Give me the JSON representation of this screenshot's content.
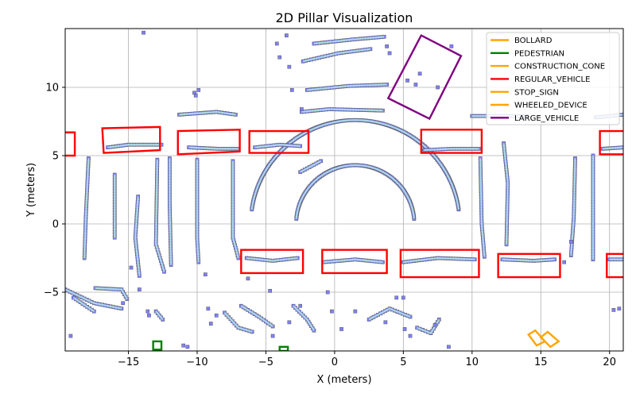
{
  "chart_data": {
    "type": "scatter",
    "title": "2D Pillar Visualization",
    "xlabel": "X (meters)",
    "ylabel": "Y (meters)",
    "xlim": [
      -19.6,
      21.0
    ],
    "ylim": [
      -9.3,
      14.3
    ],
    "x_ticks": [
      -15,
      -10,
      -5,
      0,
      5,
      10,
      15,
      20
    ],
    "x_tick_labels": [
      "−15",
      "−10",
      "−5",
      "0",
      "5",
      "10",
      "15",
      "20"
    ],
    "y_ticks": [
      -5,
      0,
      5,
      10
    ],
    "y_tick_labels": [
      "−5",
      "0",
      "5",
      "10"
    ],
    "grid": true,
    "legend_position": "top-right",
    "colors": {
      "pillar_fill": "#8080ff",
      "pillar_edge": "#555555",
      "point_line": "#add8e6",
      "bollard": "#ffa500",
      "pedestrian": "#008000",
      "construction_cone": "#ffa500",
      "regular_vehicle": "#ff0000",
      "stop_sign": "#ffa500",
      "wheeled_device": "#ffa500",
      "large_vehicle": "#800080"
    },
    "legend": [
      {
        "label": "BOLLARD",
        "color": "#ffa500"
      },
      {
        "label": "PEDESTRIAN",
        "color": "#008000"
      },
      {
        "label": "CONSTRUCTION_CONE",
        "color": "#ffa500"
      },
      {
        "label": "REGULAR_VEHICLE",
        "color": "#ff0000"
      },
      {
        "label": "STOP_SIGN",
        "color": "#ffa500"
      },
      {
        "label": "WHEELED_DEVICE",
        "color": "#ffa500"
      },
      {
        "label": "LARGE_VEHICLE",
        "color": "#800080"
      }
    ],
    "boxes": [
      {
        "category": "REGULAR_VEHICLE",
        "corners": [
          [
            -20.0,
            5.0
          ],
          [
            -18.9,
            5.0
          ],
          [
            -18.9,
            6.7
          ],
          [
            -20.0,
            6.7
          ]
        ]
      },
      {
        "category": "REGULAR_VEHICLE",
        "corners": [
          [
            -16.8,
            5.2
          ],
          [
            -12.7,
            5.4
          ],
          [
            -12.7,
            7.1
          ],
          [
            -16.9,
            7.0
          ]
        ]
      },
      {
        "category": "REGULAR_VEHICLE",
        "corners": [
          [
            -11.4,
            5.1
          ],
          [
            -6.9,
            5.3
          ],
          [
            -6.9,
            6.9
          ],
          [
            -11.4,
            6.8
          ]
        ]
      },
      {
        "category": "REGULAR_VEHICLE",
        "corners": [
          [
            -6.2,
            5.2
          ],
          [
            -1.9,
            5.2
          ],
          [
            -1.9,
            6.8
          ],
          [
            -6.2,
            6.8
          ]
        ]
      },
      {
        "category": "REGULAR_VEHICLE",
        "corners": [
          [
            6.3,
            5.2
          ],
          [
            10.7,
            5.2
          ],
          [
            10.7,
            6.9
          ],
          [
            6.3,
            6.9
          ]
        ]
      },
      {
        "category": "REGULAR_VEHICLE",
        "corners": [
          [
            19.3,
            5.1
          ],
          [
            21.2,
            5.1
          ],
          [
            21.2,
            6.8
          ],
          [
            19.3,
            6.8
          ]
        ]
      },
      {
        "category": "REGULAR_VEHICLE",
        "corners": [
          [
            -6.8,
            -3.6
          ],
          [
            -2.3,
            -3.6
          ],
          [
            -2.3,
            -1.9
          ],
          [
            -6.8,
            -1.9
          ]
        ]
      },
      {
        "category": "REGULAR_VEHICLE",
        "corners": [
          [
            -0.9,
            -3.6
          ],
          [
            3.8,
            -3.6
          ],
          [
            3.8,
            -1.9
          ],
          [
            -0.9,
            -1.9
          ]
        ]
      },
      {
        "category": "REGULAR_VEHICLE",
        "corners": [
          [
            4.8,
            -3.9
          ],
          [
            10.5,
            -3.9
          ],
          [
            10.5,
            -1.9
          ],
          [
            4.8,
            -1.9
          ]
        ]
      },
      {
        "category": "REGULAR_VEHICLE",
        "corners": [
          [
            11.9,
            -3.9
          ],
          [
            16.4,
            -3.9
          ],
          [
            16.4,
            -2.2
          ],
          [
            11.9,
            -2.2
          ]
        ]
      },
      {
        "category": "REGULAR_VEHICLE",
        "corners": [
          [
            19.8,
            -3.9
          ],
          [
            21.2,
            -3.9
          ],
          [
            21.2,
            -2.2
          ],
          [
            19.8,
            -2.2
          ]
        ]
      },
      {
        "category": "LARGE_VEHICLE",
        "corners": [
          [
            3.9,
            9.2
          ],
          [
            6.3,
            13.8
          ],
          [
            9.2,
            12.3
          ],
          [
            6.9,
            7.7
          ]
        ]
      },
      {
        "category": "PEDESTRIAN",
        "corners": [
          [
            -13.2,
            -9.2
          ],
          [
            -12.6,
            -9.2
          ],
          [
            -12.6,
            -8.6
          ],
          [
            -13.2,
            -8.6
          ]
        ]
      },
      {
        "category": "PEDESTRIAN",
        "corners": [
          [
            -4.0,
            -9.3
          ],
          [
            -3.4,
            -9.3
          ],
          [
            -3.4,
            -9.0
          ],
          [
            -4.0,
            -9.0
          ]
        ]
      },
      {
        "category": "WHEELED_DEVICE",
        "corners": [
          [
            14.1,
            -8.1
          ],
          [
            14.6,
            -7.8
          ],
          [
            15.3,
            -8.6
          ],
          [
            14.7,
            -8.9
          ]
        ]
      },
      {
        "category": "WHEELED_DEVICE",
        "corners": [
          [
            15.0,
            -8.3
          ],
          [
            15.5,
            -7.9
          ],
          [
            16.3,
            -8.6
          ],
          [
            15.7,
            -9.0
          ]
        ]
      }
    ],
    "arcs": [
      {
        "cx": 1.5,
        "cy": 0.0,
        "r": 7.6,
        "start_deg": 8,
        "end_deg": 172
      },
      {
        "cx": 1.5,
        "cy": 0.0,
        "r": 4.3,
        "start_deg": 5,
        "end_deg": 175
      }
    ],
    "pillar_lines": [
      [
        [
          -14.3,
          2.0
        ],
        [
          -14.5,
          -1.0
        ],
        [
          -14.2,
          -3.8
        ]
      ],
      [
        [
          -12.0,
          4.8
        ],
        [
          -12.0,
          1.5
        ],
        [
          -11.9,
          -3.0
        ]
      ],
      [
        [
          -10.0,
          4.7
        ],
        [
          -10.0,
          -1.0
        ],
        [
          -9.9,
          -2.8
        ]
      ],
      [
        [
          -7.4,
          4.6
        ],
        [
          -7.4,
          -1.0
        ],
        [
          -7.0,
          -2.5
        ]
      ],
      [
        [
          -17.9,
          4.8
        ],
        [
          -18.1,
          0.5
        ],
        [
          -18.2,
          -2.5
        ]
      ],
      [
        [
          -16.0,
          3.6
        ],
        [
          -16.0,
          -1.0
        ]
      ],
      [
        [
          -12.9,
          4.7
        ],
        [
          -13.0,
          -1.5
        ],
        [
          -12.4,
          -3.5
        ]
      ],
      [
        [
          18.8,
          5.0
        ],
        [
          18.8,
          0.0
        ],
        [
          18.8,
          -2.6
        ]
      ],
      [
        [
          17.5,
          4.8
        ],
        [
          17.4,
          0.5
        ],
        [
          17.2,
          -2.3
        ]
      ],
      [
        [
          12.3,
          5.9
        ],
        [
          12.6,
          3.0
        ],
        [
          12.5,
          -1.5
        ]
      ],
      [
        [
          10.6,
          4.8
        ],
        [
          10.7,
          0.0
        ],
        [
          10.9,
          -2.4
        ]
      ],
      [
        [
          -11.3,
          8.0
        ],
        [
          -8.6,
          8.2
        ],
        [
          -7.2,
          8.0
        ]
      ],
      [
        [
          -2.4,
          8.2
        ],
        [
          -0.4,
          8.4
        ],
        [
          3.5,
          8.3
        ]
      ],
      [
        [
          -2.0,
          9.8
        ],
        [
          1.0,
          10.1
        ],
        [
          3.8,
          10.2
        ]
      ],
      [
        [
          -2.3,
          11.9
        ],
        [
          0.3,
          12.5
        ],
        [
          2.6,
          12.8
        ]
      ],
      [
        [
          -1.5,
          13.2
        ],
        [
          1.3,
          13.5
        ],
        [
          3.6,
          13.7
        ]
      ],
      [
        [
          -19.6,
          -4.8
        ],
        [
          -17.5,
          -5.8
        ],
        [
          -15.5,
          -6.2
        ]
      ],
      [
        [
          -19.0,
          -5.4
        ],
        [
          -17.5,
          -6.4
        ]
      ],
      [
        [
          -17.4,
          -4.7
        ],
        [
          -15.5,
          -4.8
        ],
        [
          -15.1,
          -5.5
        ]
      ],
      [
        [
          -12.6,
          5.8
        ],
        [
          -15.0,
          5.8
        ],
        [
          -16.5,
          5.6
        ]
      ],
      [
        [
          -10.6,
          5.6
        ],
        [
          -8.5,
          5.5
        ],
        [
          -7.0,
          5.5
        ]
      ],
      [
        [
          -5.8,
          5.6
        ],
        [
          -4.0,
          5.8
        ],
        [
          -2.5,
          5.7
        ]
      ],
      [
        [
          6.5,
          5.4
        ],
        [
          8.5,
          5.5
        ],
        [
          10.5,
          5.5
        ]
      ],
      [
        [
          19.5,
          5.5
        ],
        [
          21.0,
          5.6
        ]
      ],
      [
        [
          -6.4,
          -2.5
        ],
        [
          -4.5,
          -2.7
        ],
        [
          -2.7,
          -2.5
        ]
      ],
      [
        [
          -0.8,
          -2.8
        ],
        [
          1.5,
          -2.6
        ],
        [
          3.5,
          -2.8
        ]
      ],
      [
        [
          5.0,
          -2.8
        ],
        [
          7.5,
          -2.5
        ],
        [
          10.2,
          -2.6
        ]
      ],
      [
        [
          12.2,
          -2.6
        ],
        [
          14.5,
          -2.7
        ],
        [
          16.0,
          -2.6
        ]
      ],
      [
        [
          20.0,
          -2.6
        ],
        [
          21.0,
          -2.6
        ]
      ],
      [
        [
          10.0,
          7.9
        ],
        [
          14.0,
          7.9
        ]
      ],
      [
        [
          19.0,
          7.8
        ],
        [
          21.0,
          8.0
        ]
      ],
      [
        [
          -6.8,
          -6.0
        ],
        [
          -5.5,
          -6.8
        ],
        [
          -4.5,
          -7.5
        ]
      ],
      [
        [
          -8.0,
          -6.5
        ],
        [
          -7.0,
          -7.6
        ],
        [
          -6.0,
          -7.9
        ]
      ],
      [
        [
          -3.0,
          -6.0
        ],
        [
          -2.0,
          -7.0
        ],
        [
          -1.5,
          -7.8
        ]
      ],
      [
        [
          2.5,
          -7.0
        ],
        [
          4.0,
          -6.2
        ],
        [
          5.5,
          -6.8
        ]
      ],
      [
        [
          6.0,
          -7.6
        ],
        [
          7.0,
          -8.0
        ],
        [
          7.6,
          -7.0
        ]
      ],
      [
        [
          -13.0,
          -6.4
        ],
        [
          -12.5,
          -7.0
        ]
      ],
      [
        [
          -1.0,
          4.6
        ],
        [
          -2.5,
          3.8
        ]
      ]
    ],
    "scatter_pillars": [
      [
        -13.9,
        14.0
      ],
      [
        -4.2,
        13.2
      ],
      [
        -3.5,
        13.8
      ],
      [
        -3.3,
        11.5
      ],
      [
        -4.0,
        12.2
      ],
      [
        -10.2,
        9.6
      ],
      [
        -9.9,
        9.8
      ],
      [
        -10.1,
        9.4
      ],
      [
        -3.1,
        9.8
      ],
      [
        -2.4,
        8.4
      ],
      [
        3.8,
        13.0
      ],
      [
        4.0,
        12.5
      ],
      [
        8.5,
        13.0
      ],
      [
        13.8,
        13.6
      ],
      [
        5.3,
        10.5
      ],
      [
        5.9,
        10.2
      ],
      [
        7.5,
        10.0
      ],
      [
        6.2,
        11.0
      ],
      [
        -19.2,
        -8.2
      ],
      [
        -15.4,
        -5.8
      ],
      [
        -14.2,
        -4.8
      ],
      [
        -13.6,
        -6.4
      ],
      [
        -13.5,
        -6.7
      ],
      [
        -11.0,
        -8.9
      ],
      [
        -10.7,
        -9.0
      ],
      [
        -9.2,
        -6.2
      ],
      [
        -8.6,
        -6.7
      ],
      [
        -9.0,
        -7.3
      ],
      [
        -4.5,
        -8.2
      ],
      [
        -3.3,
        -7.2
      ],
      [
        -2.5,
        -6.0
      ],
      [
        -0.2,
        -6.4
      ],
      [
        0.5,
        -7.7
      ],
      [
        1.5,
        -6.4
      ],
      [
        3.7,
        -7.2
      ],
      [
        5.1,
        -7.7
      ],
      [
        5.5,
        -8.2
      ],
      [
        7.3,
        -7.4
      ],
      [
        8.3,
        -9.0
      ],
      [
        4.5,
        -5.4
      ],
      [
        5.0,
        -5.4
      ],
      [
        -0.5,
        -5.0
      ],
      [
        -4.7,
        -4.9
      ],
      [
        20.3,
        -6.3
      ],
      [
        20.7,
        -6.2
      ],
      [
        16.7,
        -2.8
      ],
      [
        17.2,
        -1.3
      ],
      [
        -14.8,
        -3.2
      ],
      [
        -9.4,
        -3.7
      ],
      [
        -6.3,
        -4.0
      ]
    ]
  }
}
